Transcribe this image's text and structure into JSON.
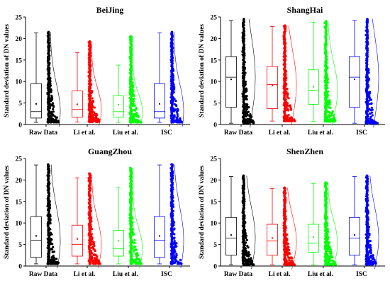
{
  "chart_data": [
    {
      "type": "box",
      "title": "BeiJing",
      "ylabel": "Standard deviation of  DN values",
      "ylim": [
        0,
        25
      ],
      "yticks": [
        0,
        5,
        10,
        15,
        20,
        25
      ],
      "categories": [
        "Raw Data",
        "Li et al.",
        "Liu et al.",
        "ISC"
      ],
      "series": [
        {
          "category": "Raw Data",
          "color": "#000000",
          "whisker_low": 0.5,
          "q1": 1.5,
          "median": 3.0,
          "mean": 4.8,
          "q3": 9.5,
          "whisker_high": 21.3,
          "max_point": 21.5
        },
        {
          "category": "Li et al.",
          "color": "#ff0000",
          "whisker_low": 0.6,
          "q1": 1.7,
          "median": 3.5,
          "mean": 4.7,
          "q3": 7.8,
          "whisker_high": 16.7,
          "max_point": 19.3
        },
        {
          "category": "Liu et al.",
          "color": "#00ff00",
          "whisker_low": 0.5,
          "q1": 1.7,
          "median": 3.0,
          "mean": 4.6,
          "q3": 6.7,
          "whisker_high": 13.8,
          "max_point": 20.5
        },
        {
          "category": "ISC",
          "color": "#0000ff",
          "whisker_low": 0.5,
          "q1": 1.5,
          "median": 3.0,
          "mean": 4.8,
          "q3": 9.5,
          "whisker_high": 21.3,
          "max_point": 21.5
        }
      ]
    },
    {
      "type": "box",
      "title": "ShangHai",
      "ylabel": "Standard deviation of  DN values",
      "ylim": [
        0,
        25
      ],
      "yticks": [
        0,
        5,
        10,
        15,
        20,
        25
      ],
      "categories": [
        "Raw Data",
        "Li et al.",
        "Liu et al.",
        "ISC"
      ],
      "series": [
        {
          "category": "Raw Data",
          "color": "#000000",
          "whisker_low": 0.3,
          "q1": 4.0,
          "median": 11.0,
          "mean": 10.5,
          "q3": 15.8,
          "whisker_high": 24.2,
          "max_point": 24.5
        },
        {
          "category": "Li et al.",
          "color": "#ff0000",
          "whisker_low": 0.8,
          "q1": 3.7,
          "median": 9.3,
          "mean": 9.1,
          "q3": 13.5,
          "whisker_high": 22.8,
          "max_point": 23.0
        },
        {
          "category": "Liu et al.",
          "color": "#00ff00",
          "whisker_low": 0.7,
          "q1": 4.7,
          "median": 8.0,
          "mean": 8.8,
          "q3": 12.7,
          "whisker_high": 23.8,
          "max_point": 24.0
        },
        {
          "category": "ISC",
          "color": "#0000ff",
          "whisker_low": 0.3,
          "q1": 4.0,
          "median": 11.0,
          "mean": 10.5,
          "q3": 15.8,
          "whisker_high": 24.2,
          "max_point": 24.5
        }
      ]
    },
    {
      "type": "box",
      "title": "GuangZhou",
      "ylabel": "Standard deviation of  DN values",
      "ylim": [
        0,
        25
      ],
      "yticks": [
        0,
        5,
        10,
        15,
        20,
        25
      ],
      "categories": [
        "Raw Data",
        "Li et al.",
        "Liu et al.",
        "ISC"
      ],
      "series": [
        {
          "category": "Raw Data",
          "color": "#000000",
          "whisker_low": 0.5,
          "q1": 2.0,
          "median": 6.0,
          "mean": 7.0,
          "q3": 11.5,
          "whisker_high": 23.5,
          "max_point": 23.6
        },
        {
          "category": "Li et al.",
          "color": "#ff0000",
          "whisker_low": 0.5,
          "q1": 2.3,
          "median": 5.0,
          "mean": 6.3,
          "q3": 9.5,
          "whisker_high": 20.5,
          "max_point": 21.5
        },
        {
          "category": "Liu et al.",
          "color": "#00ff00",
          "whisker_low": 0.5,
          "q1": 2.3,
          "median": 4.0,
          "mean": 5.9,
          "q3": 8.3,
          "whisker_high": 18.2,
          "max_point": 22.8
        },
        {
          "category": "ISC",
          "color": "#0000ff",
          "whisker_low": 0.5,
          "q1": 2.0,
          "median": 6.0,
          "mean": 7.0,
          "q3": 11.5,
          "whisker_high": 23.5,
          "max_point": 23.6
        }
      ]
    },
    {
      "type": "box",
      "title": "ShenZhen",
      "ylabel": "Standard deviation of  DN values",
      "ylim": [
        0,
        25
      ],
      "yticks": [
        0,
        5,
        10,
        15,
        20,
        25
      ],
      "categories": [
        "Raw Data",
        "Li et al.",
        "Liu et al.",
        "ISC"
      ],
      "series": [
        {
          "category": "Raw Data",
          "color": "#000000",
          "whisker_low": 0.3,
          "q1": 2.5,
          "median": 6.5,
          "mean": 7.2,
          "q3": 11.3,
          "whisker_high": 20.8,
          "max_point": 21.0
        },
        {
          "category": "Li et al.",
          "color": "#ff0000",
          "whisker_low": 0.3,
          "q1": 2.5,
          "median": 5.8,
          "mean": 6.5,
          "q3": 9.7,
          "whisker_high": 18.0,
          "max_point": 18.2
        },
        {
          "category": "Liu et al.",
          "color": "#00ff00",
          "whisker_low": 0.3,
          "q1": 3.2,
          "median": 5.3,
          "mean": 6.7,
          "q3": 9.7,
          "whisker_high": 19.2,
          "max_point": 19.4
        },
        {
          "category": "ISC",
          "color": "#0000ff",
          "whisker_low": 0.3,
          "q1": 2.5,
          "median": 6.5,
          "mean": 7.2,
          "q3": 11.3,
          "whisker_high": 20.8,
          "max_point": 21.0
        }
      ]
    }
  ]
}
